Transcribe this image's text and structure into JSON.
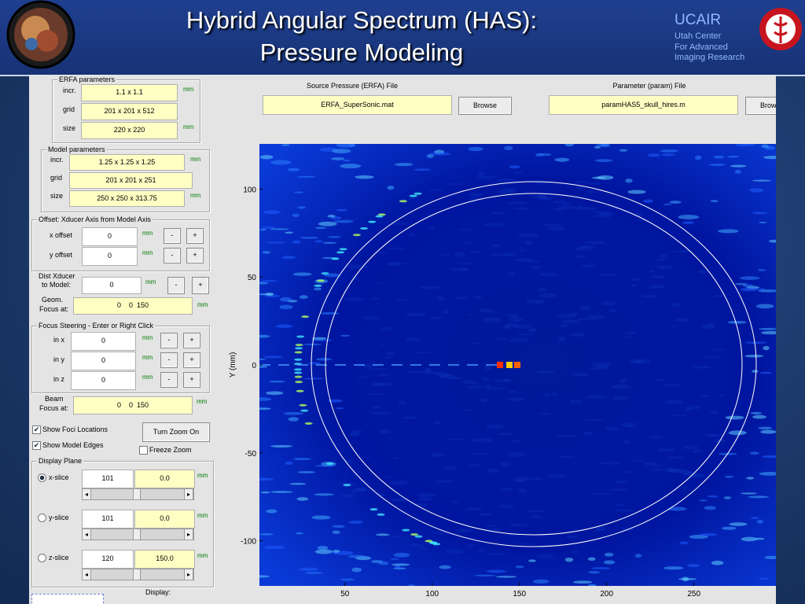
{
  "header": {
    "title_lines": [
      "Hybrid Angular Spectrum (HAS):",
      "Pressure Modeling"
    ],
    "org": {
      "name": "UCAIR",
      "lines": [
        "Utah Center",
        "For Advanced",
        "Imaging Research"
      ]
    }
  },
  "files": {
    "source": {
      "label": "Source Pressure (ERFA) File",
      "value": "ERFA_SuperSonic.mat",
      "button": "Browse"
    },
    "param": {
      "label": "Parameter (param) File",
      "value": "paramHAS5_skull_hires.m",
      "button": "Browse"
    }
  },
  "erfa": {
    "title": "ERFA parameters",
    "rows": [
      {
        "label": "incr.",
        "value": "1.1 x 1.1",
        "unit": "mm"
      },
      {
        "label": "grid",
        "value": "201 x 201 x 512"
      },
      {
        "label": "size",
        "value": "220 x 220",
        "unit": "mm"
      }
    ]
  },
  "model": {
    "title": "Model parameters",
    "rows": [
      {
        "label": "incr.",
        "value": "1.25 x 1.25 x 1.25",
        "unit": "mm"
      },
      {
        "label": "grid",
        "value": "201 x 201 x 251"
      },
      {
        "label": "size",
        "value": "250 x 250 x 313.75",
        "unit": "mm"
      }
    ]
  },
  "offset": {
    "title": "Offset: Xducer Axis from Model Axis",
    "rows": [
      {
        "label": "x offset",
        "value": "0",
        "unit": "mm",
        "minus": "-",
        "plus": "+"
      },
      {
        "label": "y offset",
        "value": "0",
        "unit": "mm",
        "minus": "-",
        "plus": "+"
      }
    ]
  },
  "dist": {
    "label_lines": [
      "Dist Xducer",
      "to Model:"
    ],
    "value": "0",
    "unit": "mm",
    "minus": "-",
    "plus": "+"
  },
  "geom": {
    "label_lines": [
      "Geom.",
      "Focus at:"
    ],
    "value": "0    0  150",
    "unit": "mm"
  },
  "steering": {
    "title": "Focus Steering - Enter or Right Click",
    "rows": [
      {
        "label": "in x",
        "value": "0",
        "unit": "mm",
        "minus": "-",
        "plus": "+"
      },
      {
        "label": "in y",
        "value": "0",
        "unit": "mm",
        "minus": "-",
        "plus": "+"
      },
      {
        "label": "in z",
        "value": "0",
        "unit": "mm",
        "minus": "-",
        "plus": "+"
      }
    ]
  },
  "beam": {
    "label_lines": [
      "Beam",
      "Focus at:"
    ],
    "value": "0    0  150",
    "unit": "mm"
  },
  "options": {
    "show_foci": {
      "label": "Show Foci Locations",
      "checked": true
    },
    "show_edges": {
      "label": "Show Model Edges",
      "checked": true
    },
    "zoom_button": "Turn Zoom On",
    "freeze": {
      "label": "Freeze Zoom",
      "checked": false
    }
  },
  "display_plane": {
    "title": "Display Plane",
    "rows": [
      {
        "label": "x-slice",
        "index": "101",
        "position": "0.0",
        "unit": "mm",
        "selected": true
      },
      {
        "label": "y-slice",
        "index": "101",
        "position": "0.0",
        "unit": "mm",
        "selected": false
      },
      {
        "label": "z-slice",
        "index": "120",
        "position": "150.0",
        "unit": "mm",
        "selected": false
      }
    ]
  },
  "display_label": "Display:",
  "plot": {
    "ylabel": "Y (mm)",
    "xlim": [
      1,
      297
    ],
    "ylim": [
      -125.7,
      125.7
    ],
    "xticks": [
      50,
      100,
      150,
      200,
      250
    ],
    "yticks": [
      100,
      50,
      0,
      -50,
      -100
    ]
  }
}
